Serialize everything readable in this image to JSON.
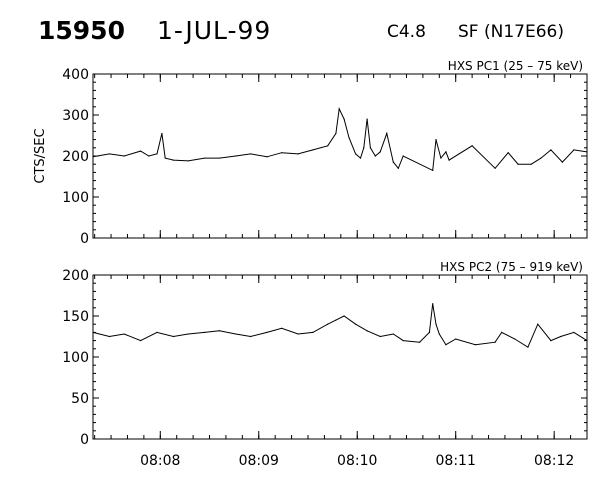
{
  "header": {
    "event_number": "15950",
    "date": "1-JUL-99",
    "flare_class": "C4.8",
    "flare_location": "SF (N17E66)"
  },
  "chart_data": [
    {
      "type": "line",
      "title": "HXS PC1 (25 – 75 keV)",
      "xlabel": "",
      "ylabel": "CTS/SEC",
      "xlim": [
        "08:07:19",
        "08:12:20"
      ],
      "ylim": [
        0,
        400
      ],
      "yticks": [
        0,
        100,
        200,
        300,
        400
      ],
      "xticks": [
        "08:08",
        "08:09",
        "08:10",
        "08:11",
        "08:12"
      ],
      "grid": false,
      "series": [
        {
          "x": [
            "08:07:19",
            "08:07:29",
            "08:07:38",
            "08:07:48",
            "08:07:53",
            "08:07:58",
            "08:08:01",
            "08:08:03",
            "08:08:08",
            "08:08:17",
            "08:08:27",
            "08:08:36",
            "08:08:46",
            "08:08:55",
            "08:09:05",
            "08:09:14",
            "08:09:24",
            "08:09:33",
            "08:09:42",
            "08:09:47",
            "08:09:49",
            "08:09:52",
            "08:09:55",
            "08:09:59",
            "08:10:02",
            "08:10:04",
            "08:10:06",
            "08:10:08",
            "08:10:11",
            "08:10:14",
            "08:10:18",
            "08:10:22",
            "08:10:25",
            "08:10:28",
            "08:10:46",
            "08:10:48",
            "08:10:51",
            "08:10:54",
            "08:10:56",
            "08:11:10",
            "08:11:24",
            "08:11:32",
            "08:11:38",
            "08:11:46",
            "08:11:52",
            "08:11:58",
            "08:12:05",
            "08:12:12",
            "08:12:20"
          ],
          "y": [
            198,
            205,
            200,
            212,
            200,
            205,
            255,
            195,
            190,
            188,
            195,
            195,
            200,
            205,
            198,
            208,
            205,
            215,
            225,
            255,
            315,
            290,
            245,
            205,
            195,
            220,
            290,
            220,
            200,
            210,
            255,
            185,
            170,
            200,
            165,
            240,
            195,
            210,
            190,
            225,
            170,
            208,
            180,
            180,
            195,
            215,
            185,
            215,
            210
          ]
        }
      ]
    },
    {
      "type": "line",
      "title": "HXS PC2 (75 – 919 keV)",
      "xlabel": "",
      "ylabel": "",
      "xlim": [
        "08:07:19",
        "08:12:20"
      ],
      "ylim": [
        0,
        200
      ],
      "yticks": [
        0,
        50,
        100,
        150,
        200
      ],
      "xticks": [
        "08:08",
        "08:09",
        "08:10",
        "08:11",
        "08:12"
      ],
      "grid": false,
      "series": [
        {
          "x": [
            "08:07:19",
            "08:07:29",
            "08:07:38",
            "08:07:48",
            "08:07:58",
            "08:08:08",
            "08:08:17",
            "08:08:27",
            "08:08:36",
            "08:08:46",
            "08:08:55",
            "08:09:05",
            "08:09:14",
            "08:09:24",
            "08:09:33",
            "08:09:42",
            "08:09:47",
            "08:09:52",
            "08:09:59",
            "08:10:06",
            "08:10:14",
            "08:10:22",
            "08:10:28",
            "08:10:38",
            "08:10:44",
            "08:10:46",
            "08:10:48",
            "08:10:50",
            "08:10:54",
            "08:11:00",
            "08:11:12",
            "08:11:24",
            "08:11:28",
            "08:11:36",
            "08:11:44",
            "08:11:50",
            "08:11:58",
            "08:12:04",
            "08:12:12",
            "08:12:20"
          ],
          "y": [
            130,
            125,
            128,
            120,
            130,
            125,
            128,
            130,
            132,
            128,
            125,
            130,
            135,
            128,
            130,
            140,
            145,
            150,
            140,
            132,
            125,
            128,
            120,
            118,
            130,
            165,
            140,
            128,
            115,
            122,
            115,
            118,
            130,
            122,
            112,
            140,
            120,
            125,
            130,
            120
          ]
        }
      ]
    }
  ]
}
